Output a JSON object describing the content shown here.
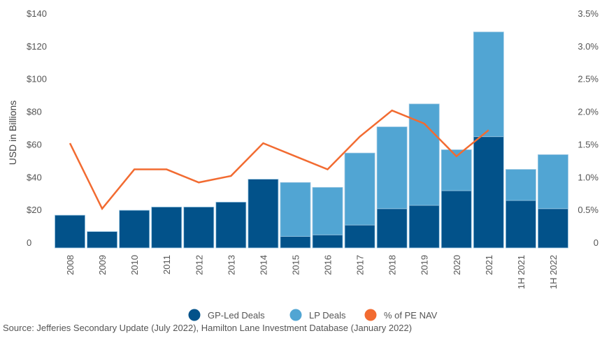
{
  "chart_data": {
    "type": "bar",
    "stacked": true,
    "title": "",
    "categories": [
      "2008",
      "2009",
      "2010",
      "2011",
      "2012",
      "2013",
      "2014",
      "2015",
      "2016",
      "2017",
      "2018",
      "2019",
      "2020",
      "2021",
      "1H 2021",
      "1H 2022"
    ],
    "series": [
      {
        "name": "GP-Led Deals",
        "type": "bar",
        "axis": "left",
        "color": "#02528A",
        "values": [
          20,
          10,
          23,
          25,
          25,
          28,
          42,
          7,
          8,
          14,
          24,
          26,
          35,
          68,
          29,
          24
        ]
      },
      {
        "name": "LP Deals",
        "type": "bar",
        "axis": "left",
        "color": "#51A5D3",
        "values": [
          0,
          0,
          0,
          0,
          0,
          0,
          0,
          33,
          29,
          44,
          50,
          62,
          25,
          64,
          19,
          33
        ]
      },
      {
        "name": "% of PE NAV",
        "type": "line",
        "axis": "right",
        "color": "#F26B31",
        "values": [
          1.6,
          0.6,
          1.2,
          1.2,
          1.0,
          1.1,
          1.6,
          1.4,
          1.2,
          1.7,
          2.1,
          1.9,
          1.4,
          1.8,
          null,
          null
        ]
      }
    ],
    "xlabel": "",
    "ylabel": "USD in Billions",
    "ylim": [
      0,
      140
    ],
    "yticks": [
      "0",
      "$20",
      "$40",
      "$60",
      "$80",
      "$100",
      "$120",
      "$140"
    ],
    "ylim_right": [
      0,
      3.5
    ],
    "yticks_right": [
      "0",
      "0.5%",
      "1.0%",
      "1.5%",
      "2.0%",
      "2.5%",
      "3.0%",
      "3.5%"
    ],
    "grid": false,
    "legend_position": "bottom-center",
    "legend": [
      "GP-Led Deals",
      "LP Deals",
      "% of PE NAV"
    ]
  },
  "source_note": "Source: Jefferies Secondary Update (July 2022), Hamilton Lane Investment Database (January 2022)"
}
